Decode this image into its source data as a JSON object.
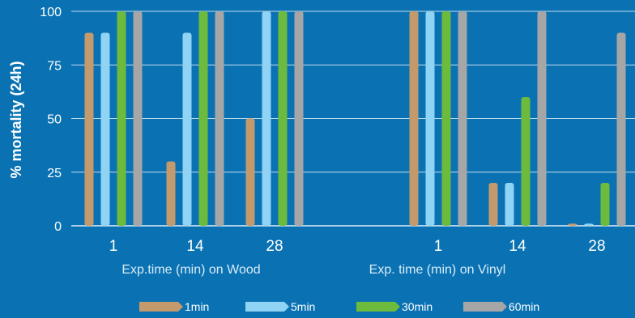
{
  "chart_data": {
    "type": "bar",
    "ylabel": "% mortality  (24h)",
    "ylim": [
      0,
      100
    ],
    "yticks": [
      0,
      25,
      50,
      75,
      100
    ],
    "grid": "horizontal",
    "legend_position": "bottom",
    "groups": [
      {
        "label": "Exp.time (min) on Wood",
        "categories": [
          "1",
          "14",
          "28"
        ],
        "series_values": [
          [
            90,
            30,
            50
          ],
          [
            90,
            90,
            100
          ],
          [
            100,
            100,
            100
          ],
          [
            100,
            100,
            100
          ]
        ]
      },
      {
        "label": "Exp. time (min) on Vinyl",
        "categories": [
          "1",
          "14",
          "28"
        ],
        "series_values": [
          [
            100,
            20,
            1
          ],
          [
            100,
            20,
            1
          ],
          [
            100,
            60,
            20
          ],
          [
            100,
            100,
            90
          ]
        ]
      }
    ],
    "series": [
      {
        "name": "1min",
        "color": "#c49a6c"
      },
      {
        "name": "5min",
        "color": "#8fd3f5"
      },
      {
        "name": "30min",
        "color": "#6dbb3c"
      },
      {
        "name": "60min",
        "color": "#a6a6a6"
      }
    ],
    "colors": {
      "background": "#0a72b3",
      "grid": "#ffffff",
      "text": "#ffffff"
    }
  }
}
